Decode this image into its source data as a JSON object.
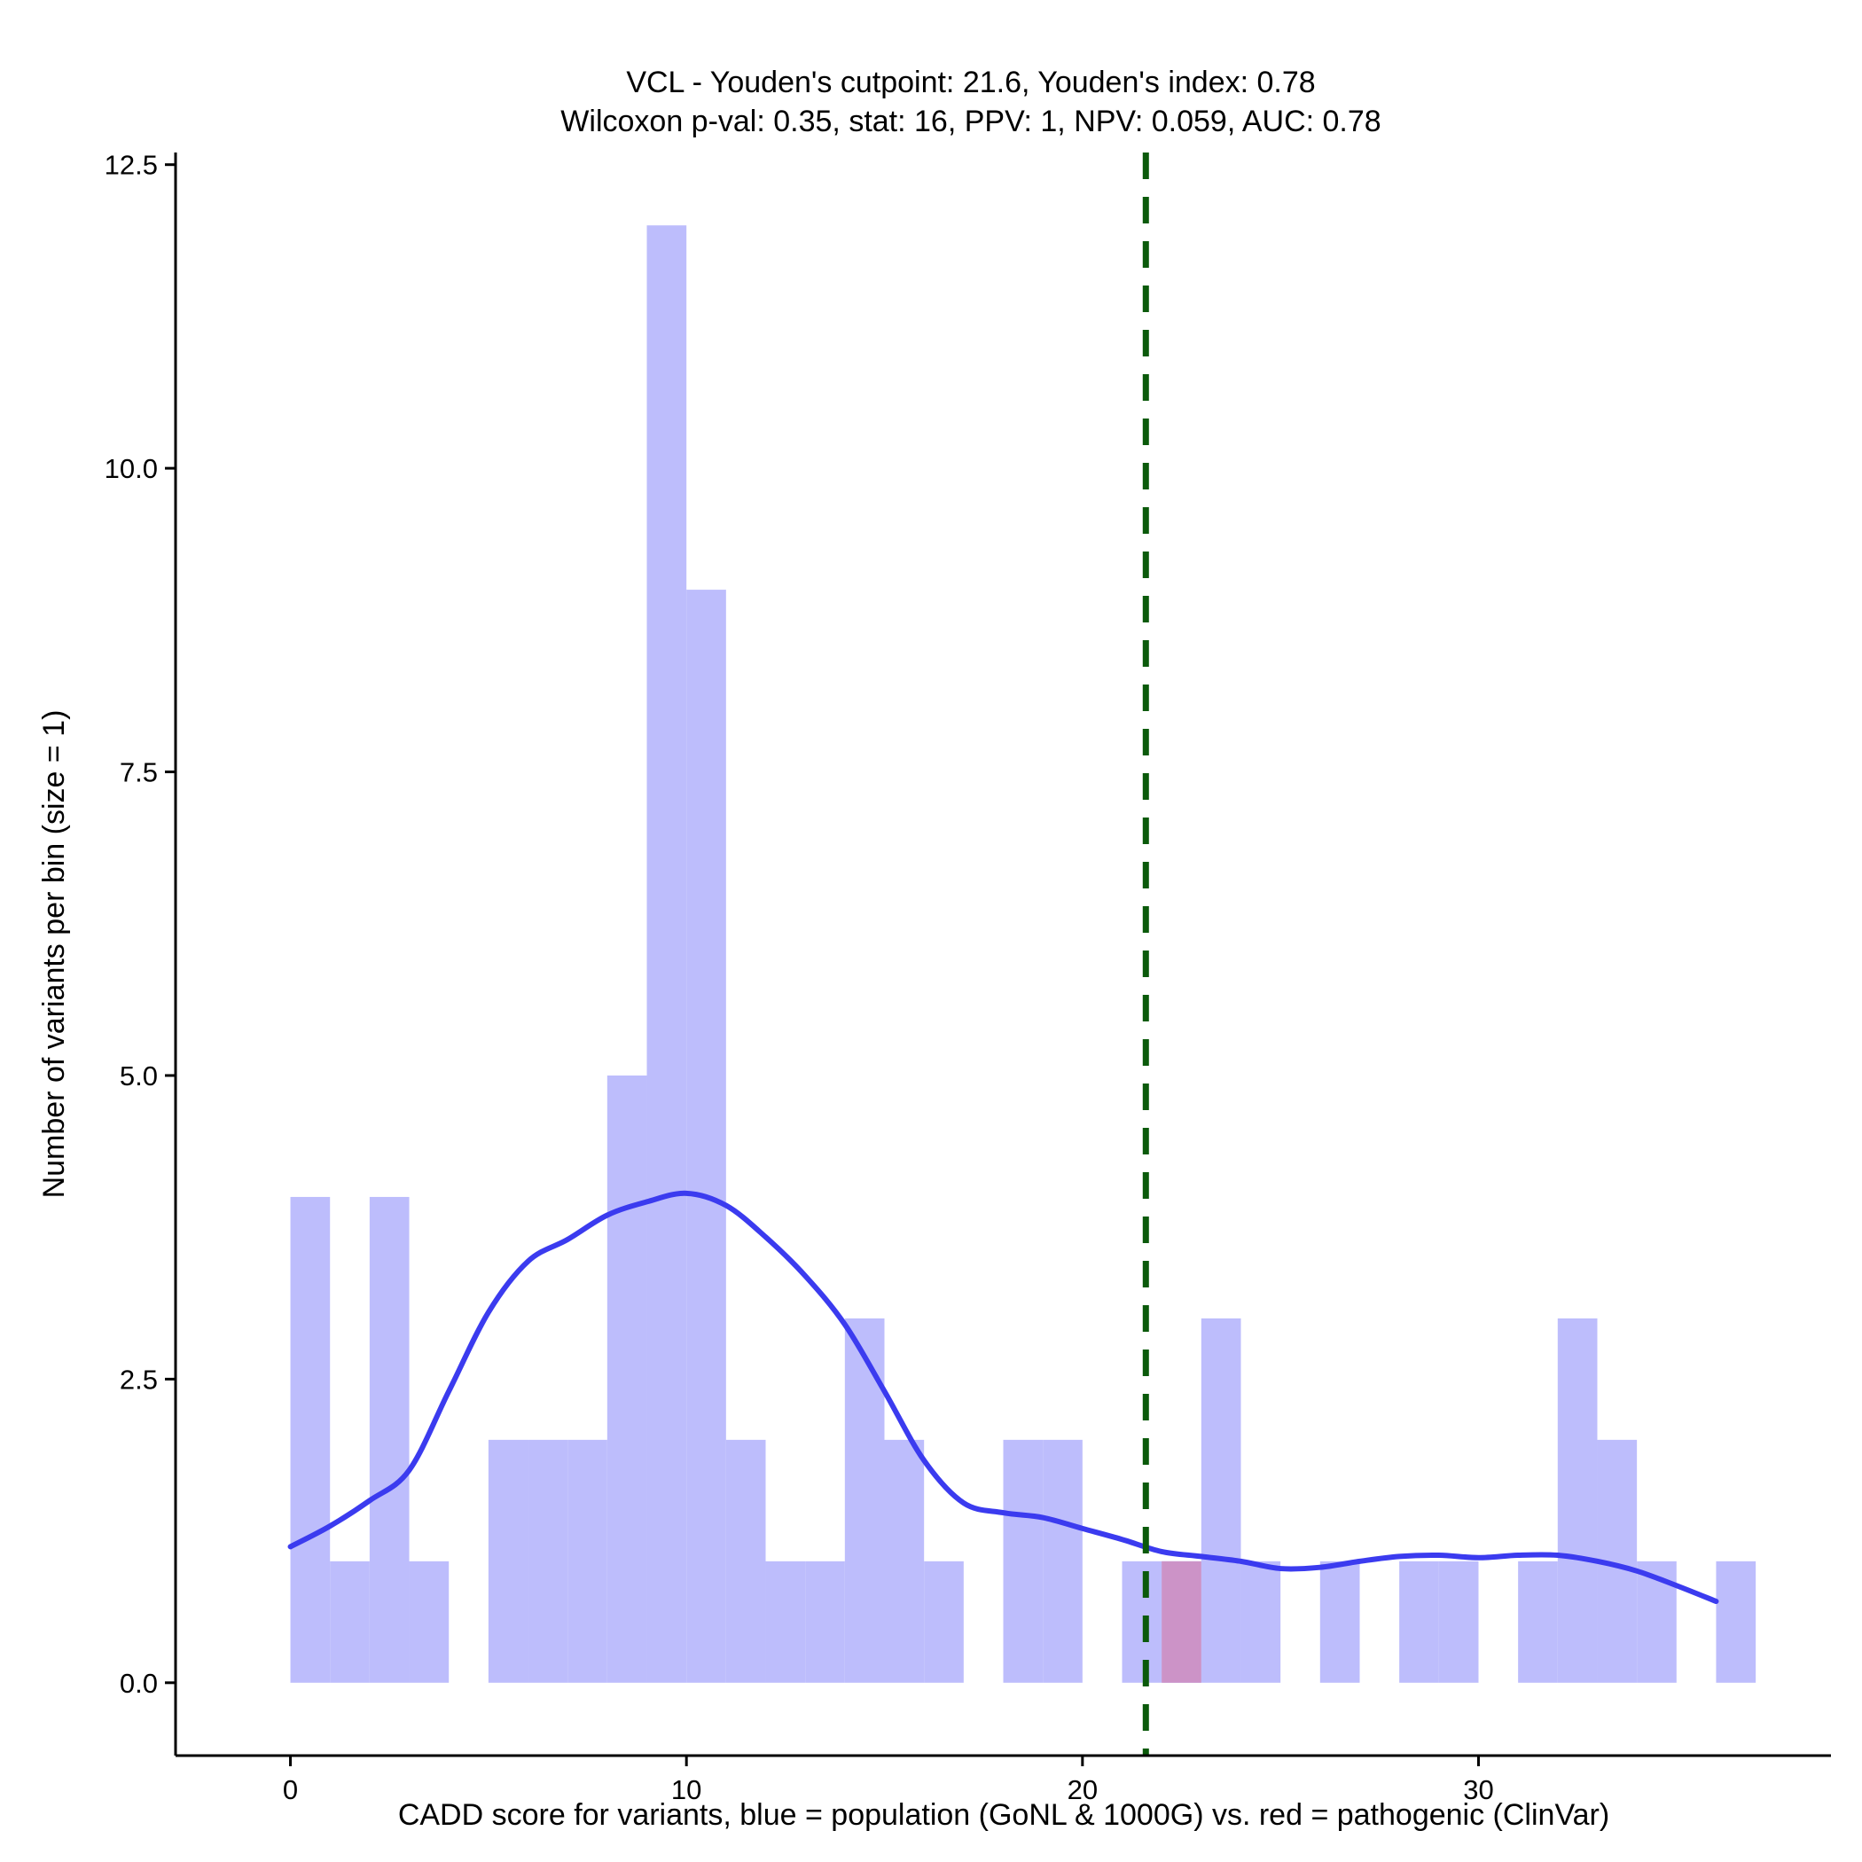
{
  "chart_data": {
    "type": "bar",
    "title": "VCL - Youden's cutpoint: 21.6, Youden's index: 0.78",
    "subtitle": "Wilcoxon p-val: 0.35, stat: 16, PPV: 1, NPV: 0.059, AUC: 0.78",
    "xlabel": "CADD score for variants, blue = population (GoNL & 1000G) vs. red = pathogenic (ClinVar)",
    "ylabel": "Number of variants per bin (size = 1)",
    "xlim": [
      -2.9,
      38.9
    ],
    "ylim": [
      -0.6,
      12.6
    ],
    "x_ticks": [
      0,
      10,
      20,
      30
    ],
    "y_ticks": [
      0.0,
      2.5,
      5.0,
      7.5,
      10.0,
      12.5
    ],
    "x_tick_labels": [
      "0",
      "10",
      "20",
      "30"
    ],
    "y_tick_labels": [
      "0.0",
      "2.5",
      "5.0",
      "7.5",
      "10.0",
      "12.5"
    ],
    "bin_width": 1,
    "series": [
      {
        "name": "population (GoNL & 1000G)",
        "color": "#bdbdfc",
        "bins": [
          {
            "x": 0,
            "count": 4
          },
          {
            "x": 1,
            "count": 1
          },
          {
            "x": 2,
            "count": 4
          },
          {
            "x": 3,
            "count": 1
          },
          {
            "x": 5,
            "count": 2
          },
          {
            "x": 6,
            "count": 2
          },
          {
            "x": 7,
            "count": 2
          },
          {
            "x": 8,
            "count": 5
          },
          {
            "x": 9,
            "count": 12
          },
          {
            "x": 10,
            "count": 9
          },
          {
            "x": 11,
            "count": 2
          },
          {
            "x": 12,
            "count": 1
          },
          {
            "x": 13,
            "count": 1
          },
          {
            "x": 14,
            "count": 3
          },
          {
            "x": 15,
            "count": 2
          },
          {
            "x": 16,
            "count": 1
          },
          {
            "x": 18,
            "count": 2
          },
          {
            "x": 19,
            "count": 2
          },
          {
            "x": 21,
            "count": 1
          },
          {
            "x": 22,
            "count": 1
          },
          {
            "x": 23,
            "count": 3
          },
          {
            "x": 24,
            "count": 1
          },
          {
            "x": 26,
            "count": 1
          },
          {
            "x": 28,
            "count": 1
          },
          {
            "x": 29,
            "count": 1
          },
          {
            "x": 31,
            "count": 1
          },
          {
            "x": 32,
            "count": 3
          },
          {
            "x": 33,
            "count": 2
          },
          {
            "x": 34,
            "count": 1
          },
          {
            "x": 36,
            "count": 1
          }
        ]
      },
      {
        "name": "pathogenic (ClinVar)",
        "color": "#cc90c4",
        "bins": [
          {
            "x": 22,
            "count": 1
          }
        ]
      }
    ],
    "density_curve": {
      "name": "population density (scaled)",
      "color": "#3b3bef",
      "points": [
        [
          0,
          1.12
        ],
        [
          1,
          1.29
        ],
        [
          2,
          1.5
        ],
        [
          3,
          1.75
        ],
        [
          4,
          2.4
        ],
        [
          5,
          3.05
        ],
        [
          6,
          3.47
        ],
        [
          7,
          3.65
        ],
        [
          8,
          3.85
        ],
        [
          9,
          3.96
        ],
        [
          10,
          4.03
        ],
        [
          11,
          3.93
        ],
        [
          12,
          3.67
        ],
        [
          13,
          3.35
        ],
        [
          14,
          2.95
        ],
        [
          15,
          2.4
        ],
        [
          16,
          1.83
        ],
        [
          17,
          1.48
        ],
        [
          18,
          1.4
        ],
        [
          19,
          1.36
        ],
        [
          20,
          1.27
        ],
        [
          21,
          1.18
        ],
        [
          22,
          1.08
        ],
        [
          23,
          1.04
        ],
        [
          24,
          1.0
        ],
        [
          25,
          0.94
        ],
        [
          26,
          0.95
        ],
        [
          27,
          1.0
        ],
        [
          28,
          1.04
        ],
        [
          29,
          1.05
        ],
        [
          30,
          1.03
        ],
        [
          31,
          1.05
        ],
        [
          32,
          1.05
        ],
        [
          33,
          1.0
        ],
        [
          34,
          0.92
        ],
        [
          35,
          0.8
        ],
        [
          36,
          0.67
        ]
      ]
    },
    "cutpoint": {
      "x": 21.6,
      "color": "#0b5a0b",
      "style": "dashed"
    }
  }
}
